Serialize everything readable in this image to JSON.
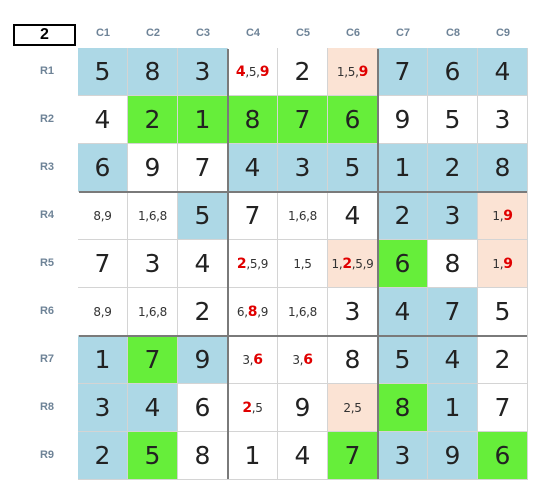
{
  "step": "2",
  "columns": [
    "C1",
    "C2",
    "C3",
    "C4",
    "C5",
    "C6",
    "C7",
    "C8",
    "C9"
  ],
  "rows": [
    "R1",
    "R2",
    "R3",
    "R4",
    "R5",
    "R6",
    "R7",
    "R8",
    "R9"
  ],
  "colors": {
    "blue": "#add8e6",
    "green": "#66ee3a",
    "peach": "#fbe3d4",
    "white": "#ffffff",
    "highlight": "#e00000"
  },
  "cells": [
    [
      {
        "v": "5",
        "bg": "blue"
      },
      {
        "v": "8",
        "bg": "blue"
      },
      {
        "v": "3",
        "bg": "blue"
      },
      {
        "c": [
          {
            "t": "4",
            "r": true
          },
          {
            "t": ","
          },
          {
            "t": "5"
          },
          {
            "t": ","
          },
          {
            "t": "9",
            "r": true
          }
        ],
        "bg": "white"
      },
      {
        "v": "2",
        "bg": "white"
      },
      {
        "c": [
          {
            "t": "1"
          },
          {
            "t": ","
          },
          {
            "t": "5"
          },
          {
            "t": ","
          },
          {
            "t": "9",
            "r": true
          }
        ],
        "bg": "peach"
      },
      {
        "v": "7",
        "bg": "blue"
      },
      {
        "v": "6",
        "bg": "blue"
      },
      {
        "v": "4",
        "bg": "blue"
      }
    ],
    [
      {
        "v": "4",
        "bg": "white"
      },
      {
        "v": "2",
        "bg": "green"
      },
      {
        "v": "1",
        "bg": "green"
      },
      {
        "v": "8",
        "bg": "green"
      },
      {
        "v": "7",
        "bg": "green"
      },
      {
        "v": "6",
        "bg": "green"
      },
      {
        "v": "9",
        "bg": "white"
      },
      {
        "v": "5",
        "bg": "white"
      },
      {
        "v": "3",
        "bg": "white"
      }
    ],
    [
      {
        "v": "6",
        "bg": "blue"
      },
      {
        "v": "9",
        "bg": "white"
      },
      {
        "v": "7",
        "bg": "white"
      },
      {
        "v": "4",
        "bg": "blue"
      },
      {
        "v": "3",
        "bg": "blue"
      },
      {
        "v": "5",
        "bg": "blue"
      },
      {
        "v": "1",
        "bg": "blue"
      },
      {
        "v": "2",
        "bg": "blue"
      },
      {
        "v": "8",
        "bg": "blue"
      }
    ],
    [
      {
        "c": [
          {
            "t": "8,9"
          }
        ],
        "bg": "white"
      },
      {
        "c": [
          {
            "t": "1,6,8"
          }
        ],
        "bg": "white"
      },
      {
        "v": "5",
        "bg": "blue"
      },
      {
        "v": "7",
        "bg": "white"
      },
      {
        "c": [
          {
            "t": "1,6,8"
          }
        ],
        "bg": "white"
      },
      {
        "v": "4",
        "bg": "white"
      },
      {
        "v": "2",
        "bg": "blue"
      },
      {
        "v": "3",
        "bg": "blue"
      },
      {
        "c": [
          {
            "t": "1"
          },
          {
            "t": ","
          },
          {
            "t": "9",
            "r": true
          }
        ],
        "bg": "peach"
      }
    ],
    [
      {
        "v": "7",
        "bg": "white"
      },
      {
        "v": "3",
        "bg": "white"
      },
      {
        "v": "4",
        "bg": "white"
      },
      {
        "c": [
          {
            "t": "2",
            "r": true
          },
          {
            "t": ",5,9"
          }
        ],
        "bg": "white"
      },
      {
        "c": [
          {
            "t": "1,5"
          }
        ],
        "bg": "white"
      },
      {
        "c": [
          {
            "t": "1,"
          },
          {
            "t": "2",
            "r": true
          },
          {
            "t": ",5,9"
          }
        ],
        "bg": "peach"
      },
      {
        "v": "6",
        "bg": "green"
      },
      {
        "v": "8",
        "bg": "white"
      },
      {
        "c": [
          {
            "t": "1"
          },
          {
            "t": ","
          },
          {
            "t": "9",
            "r": true
          }
        ],
        "bg": "peach"
      }
    ],
    [
      {
        "c": [
          {
            "t": "8,9"
          }
        ],
        "bg": "white"
      },
      {
        "c": [
          {
            "t": "1,6,8"
          }
        ],
        "bg": "white"
      },
      {
        "v": "2",
        "bg": "white"
      },
      {
        "c": [
          {
            "t": "6,"
          },
          {
            "t": "8",
            "r": true
          },
          {
            "t": ",9"
          }
        ],
        "bg": "white"
      },
      {
        "c": [
          {
            "t": "1,6,8"
          }
        ],
        "bg": "white"
      },
      {
        "v": "3",
        "bg": "white"
      },
      {
        "v": "4",
        "bg": "blue"
      },
      {
        "v": "7",
        "bg": "blue"
      },
      {
        "v": "5",
        "bg": "white"
      }
    ],
    [
      {
        "v": "1",
        "bg": "blue"
      },
      {
        "v": "7",
        "bg": "green"
      },
      {
        "v": "9",
        "bg": "blue"
      },
      {
        "c": [
          {
            "t": "3,"
          },
          {
            "t": "6",
            "r": true
          }
        ],
        "bg": "white"
      },
      {
        "c": [
          {
            "t": "3,"
          },
          {
            "t": "6",
            "r": true
          }
        ],
        "bg": "white"
      },
      {
        "v": "8",
        "bg": "white"
      },
      {
        "v": "5",
        "bg": "blue"
      },
      {
        "v": "4",
        "bg": "blue"
      },
      {
        "v": "2",
        "bg": "white"
      }
    ],
    [
      {
        "v": "3",
        "bg": "blue"
      },
      {
        "v": "4",
        "bg": "blue"
      },
      {
        "v": "6",
        "bg": "white"
      },
      {
        "c": [
          {
            "t": "2",
            "r": true
          },
          {
            "t": ",5"
          }
        ],
        "bg": "white"
      },
      {
        "v": "9",
        "bg": "white"
      },
      {
        "c": [
          {
            "t": "2,5"
          }
        ],
        "bg": "peach"
      },
      {
        "v": "8",
        "bg": "green"
      },
      {
        "v": "1",
        "bg": "blue"
      },
      {
        "v": "7",
        "bg": "white"
      }
    ],
    [
      {
        "v": "2",
        "bg": "blue"
      },
      {
        "v": "5",
        "bg": "green"
      },
      {
        "v": "8",
        "bg": "white"
      },
      {
        "v": "1",
        "bg": "white"
      },
      {
        "v": "4",
        "bg": "white"
      },
      {
        "v": "7",
        "bg": "green"
      },
      {
        "v": "3",
        "bg": "blue"
      },
      {
        "v": "9",
        "bg": "blue"
      },
      {
        "v": "6",
        "bg": "green"
      }
    ]
  ]
}
